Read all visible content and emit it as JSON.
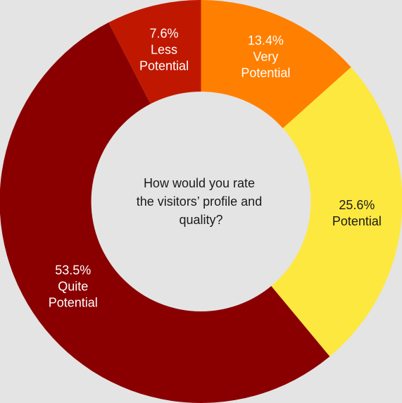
{
  "chart_data": {
    "type": "pie",
    "variant": "donut",
    "center_text": [
      "How would you rate",
      "the visitors’ profile and",
      "quality?"
    ],
    "categories": [
      "Very Potential",
      "Potential",
      "Quite Potential",
      "Less Potential"
    ],
    "values": [
      13.4,
      25.6,
      53.5,
      7.6
    ],
    "value_labels": [
      "13.4%",
      "25.6%",
      "53.5%",
      "7.6%"
    ],
    "label_lines": [
      [
        "13.4%",
        "Very",
        "Potential"
      ],
      [
        "25.6%",
        "Potential"
      ],
      [
        "53.5%",
        "Quite",
        "Potential"
      ],
      [
        "7.6%",
        "Less",
        "Potential"
      ]
    ],
    "colors": [
      "#ff7f00",
      "#fde840",
      "#8a0000",
      "#c01800"
    ],
    "label_colors": [
      "#ffffff",
      "#1a1a1a",
      "#ffffff",
      "#ffffff"
    ],
    "background": "#e4e4e4",
    "hole_color": "#e4e4e4"
  }
}
